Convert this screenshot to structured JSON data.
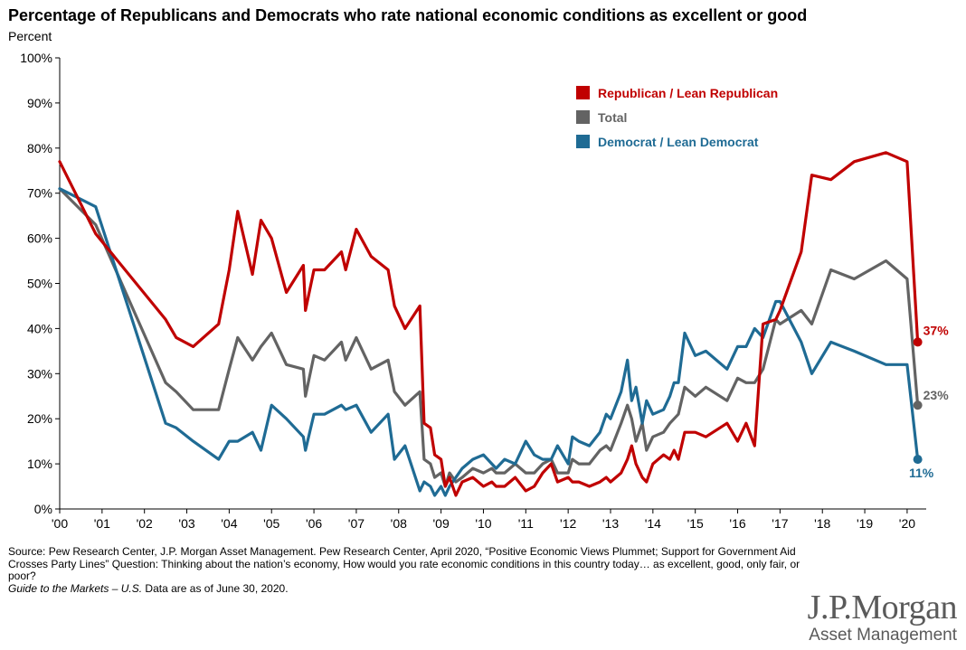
{
  "title": "Percentage of Republicans and Democrats who rate national economic conditions as excellent or good",
  "unit_label": "Percent",
  "chart_data": {
    "type": "line",
    "xlim": [
      2000.0,
      2020.45
    ],
    "ylim": [
      0,
      100
    ],
    "y_ticks": [
      0,
      10,
      20,
      30,
      40,
      50,
      60,
      70,
      80,
      90,
      100
    ],
    "y_tick_labels": [
      "0%",
      "10%",
      "20%",
      "30%",
      "40%",
      "50%",
      "60%",
      "70%",
      "80%",
      "90%",
      "100%"
    ],
    "x_ticks": [
      2000,
      2001,
      2002,
      2003,
      2004,
      2005,
      2006,
      2007,
      2008,
      2009,
      2010,
      2011,
      2012,
      2013,
      2014,
      2015,
      2016,
      2017,
      2018,
      2019,
      2020
    ],
    "x_tick_labels": [
      "'00",
      "'01",
      "'02",
      "'03",
      "'04",
      "'05",
      "'06",
      "'07",
      "'08",
      "'09",
      "'10",
      "'11",
      "'12",
      "'13",
      "'14",
      "'15",
      "'16",
      "'17",
      "'18",
      "'19",
      "'20"
    ],
    "grid": false,
    "legend_position": "top-right",
    "series": [
      {
        "name": "Republican / Lean Republican",
        "color": "#c00000",
        "end_label": "37%",
        "x": [
          2000.0,
          2000.85,
          2002.5,
          2002.75,
          2003.15,
          2003.75,
          2004.0,
          2004.2,
          2004.55,
          2004.75,
          2005.0,
          2005.35,
          2005.75,
          2005.8,
          2006.0,
          2006.25,
          2006.65,
          2006.75,
          2007.0,
          2007.35,
          2007.75,
          2007.9,
          2008.15,
          2008.5,
          2008.6,
          2008.75,
          2008.85,
          2009.0,
          2009.1,
          2009.2,
          2009.35,
          2009.5,
          2009.75,
          2010.0,
          2010.2,
          2010.3,
          2010.5,
          2010.75,
          2011.0,
          2011.2,
          2011.4,
          2011.6,
          2011.75,
          2012.0,
          2012.1,
          2012.25,
          2012.5,
          2012.75,
          2012.9,
          2013.0,
          2013.25,
          2013.4,
          2013.5,
          2013.6,
          2013.75,
          2013.85,
          2014.0,
          2014.25,
          2014.4,
          2014.5,
          2014.6,
          2014.75,
          2015.0,
          2015.25,
          2015.75,
          2016.0,
          2016.2,
          2016.4,
          2016.6,
          2016.9,
          2017.0,
          2017.5,
          2017.75,
          2018.2,
          2018.75,
          2019.5,
          2019.5,
          2020.0,
          2020.25
        ],
        "values": [
          77,
          61,
          42,
          38,
          36,
          41,
          53,
          66,
          52,
          64,
          60,
          48,
          54,
          44,
          53,
          53,
          57,
          53,
          62,
          56,
          53,
          45,
          40,
          45,
          19,
          18,
          12,
          11,
          5,
          7,
          3,
          6,
          7,
          5,
          6,
          5,
          5,
          7,
          4,
          5,
          8,
          10,
          6,
          7,
          6,
          6,
          5,
          6,
          7,
          6,
          8,
          11,
          14,
          10,
          7,
          6,
          10,
          12,
          11,
          13,
          11,
          17,
          17,
          16,
          19,
          15,
          19,
          14,
          41,
          42,
          44,
          57,
          74,
          73,
          77,
          79,
          79,
          77,
          37
        ]
      },
      {
        "name": "Total",
        "color": "#636363",
        "end_label": "23%",
        "x": [
          2000.0,
          2000.85,
          2002.5,
          2002.75,
          2003.15,
          2003.75,
          2004.0,
          2004.2,
          2004.55,
          2004.75,
          2005.0,
          2005.35,
          2005.75,
          2005.8,
          2006.0,
          2006.25,
          2006.65,
          2006.75,
          2007.0,
          2007.35,
          2007.75,
          2007.9,
          2008.15,
          2008.5,
          2008.6,
          2008.75,
          2008.85,
          2009.0,
          2009.1,
          2009.2,
          2009.35,
          2009.5,
          2009.75,
          2010.0,
          2010.2,
          2010.3,
          2010.5,
          2010.75,
          2011.0,
          2011.2,
          2011.4,
          2011.6,
          2011.75,
          2012.0,
          2012.1,
          2012.25,
          2012.5,
          2012.75,
          2012.9,
          2013.0,
          2013.25,
          2013.4,
          2013.5,
          2013.6,
          2013.75,
          2013.85,
          2014.0,
          2014.25,
          2014.4,
          2014.5,
          2014.6,
          2014.75,
          2015.0,
          2015.25,
          2015.75,
          2016.0,
          2016.2,
          2016.4,
          2016.6,
          2016.9,
          2017.0,
          2017.5,
          2017.75,
          2018.2,
          2018.75,
          2019.5,
          2019.5,
          2020.0,
          2020.25
        ],
        "values": [
          71,
          63,
          28,
          26,
          22,
          22,
          31,
          38,
          33,
          36,
          39,
          32,
          31,
          25,
          34,
          33,
          37,
          33,
          38,
          31,
          33,
          26,
          23,
          26,
          11,
          10,
          7,
          8,
          5,
          8,
          6,
          7,
          9,
          8,
          9,
          8,
          8,
          10,
          8,
          8,
          10,
          11,
          8,
          8,
          11,
          10,
          10,
          13,
          14,
          13,
          19,
          23,
          20,
          15,
          19,
          13,
          16,
          17,
          19,
          20,
          21,
          27,
          25,
          27,
          24,
          29,
          28,
          28,
          31,
          42,
          41,
          44,
          41,
          53,
          51,
          55,
          55,
          51,
          23
        ]
      },
      {
        "name": "Democrat / Lean Democrat",
        "color": "#1f6b94",
        "end_label": "11%",
        "x": [
          2000.0,
          2000.85,
          2002.5,
          2002.75,
          2003.15,
          2003.75,
          2004.0,
          2004.2,
          2004.55,
          2004.75,
          2005.0,
          2005.35,
          2005.75,
          2005.8,
          2006.0,
          2006.25,
          2006.65,
          2006.75,
          2007.0,
          2007.35,
          2007.75,
          2007.9,
          2008.15,
          2008.5,
          2008.6,
          2008.75,
          2008.85,
          2009.0,
          2009.1,
          2009.2,
          2009.35,
          2009.5,
          2009.75,
          2010.0,
          2010.2,
          2010.3,
          2010.5,
          2010.75,
          2011.0,
          2011.2,
          2011.4,
          2011.6,
          2011.75,
          2012.0,
          2012.1,
          2012.25,
          2012.5,
          2012.75,
          2012.9,
          2013.0,
          2013.25,
          2013.4,
          2013.5,
          2013.6,
          2013.75,
          2013.85,
          2014.0,
          2014.25,
          2014.4,
          2014.5,
          2014.6,
          2014.75,
          2015.0,
          2015.25,
          2015.75,
          2016.0,
          2016.2,
          2016.4,
          2016.6,
          2016.9,
          2017.0,
          2017.5,
          2017.75,
          2018.2,
          2018.75,
          2019.5,
          2019.5,
          2020.0,
          2020.25
        ],
        "values": [
          71,
          67,
          19,
          18,
          15,
          11,
          15,
          15,
          17,
          13,
          23,
          20,
          16,
          13,
          21,
          21,
          23,
          22,
          23,
          17,
          21,
          11,
          14,
          4,
          6,
          5,
          3,
          5,
          3,
          5,
          7,
          9,
          11,
          12,
          10,
          9,
          11,
          10,
          15,
          12,
          11,
          11,
          14,
          10,
          16,
          15,
          14,
          17,
          21,
          20,
          26,
          33,
          24,
          27,
          19,
          24,
          21,
          22,
          25,
          28,
          28,
          39,
          34,
          35,
          31,
          36,
          36,
          40,
          38,
          46,
          46,
          37,
          30,
          37,
          35,
          32,
          32,
          32,
          11
        ]
      }
    ]
  },
  "footnote": {
    "source": "Source: Pew Research Center, J.P. Morgan Asset Management. Pew Research Center, April 2020, “Positive Economic Views Plummet; Support for Government Aid Crosses Party Lines” Question: Thinking about the nation’s economy, How would you rate economic conditions in this country today… as excellent, good, only fair, or poor?",
    "guide": "Guide to the Markets – U.S.",
    "date_note": " Data are as of June 30, 2020."
  },
  "logo": {
    "name": "J.P.Morgan",
    "sub": "Asset Management"
  }
}
